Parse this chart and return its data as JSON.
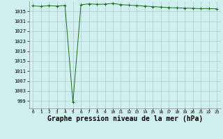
{
  "x": [
    0,
    1,
    2,
    3,
    4,
    5,
    6,
    7,
    8,
    9,
    10,
    11,
    12,
    13,
    14,
    15,
    16,
    17,
    18,
    19,
    20,
    21,
    22,
    23
  ],
  "y": [
    1037.2,
    1037.0,
    1037.3,
    1037.1,
    1037.4,
    998.5,
    1037.6,
    1038.0,
    1037.8,
    1037.9,
    1038.2,
    1037.7,
    1037.5,
    1037.3,
    1037.1,
    1036.9,
    1036.7,
    1036.5,
    1036.4,
    1036.3,
    1036.2,
    1036.1,
    1036.1,
    1036.0
  ],
  "line_color": "#1a6b1a",
  "marker_color": "#1a6b1a",
  "bg_color": "#d0f0f0",
  "grid_color": "#b0c8c8",
  "xlabel": "Graphe pression niveau de la mer (hPa)",
  "xlabel_fontsize": 7,
  "yticks": [
    999,
    1003,
    1007,
    1011,
    1015,
    1019,
    1023,
    1027,
    1031,
    1035
  ],
  "xtick_labels": [
    "0",
    "1",
    "2",
    "3",
    "4",
    "5",
    "6",
    "7",
    "8",
    "9",
    "10111213141516171819202122 23"
  ],
  "ylim": [
    996,
    1039
  ],
  "xlim": [
    -0.5,
    23.5
  ]
}
